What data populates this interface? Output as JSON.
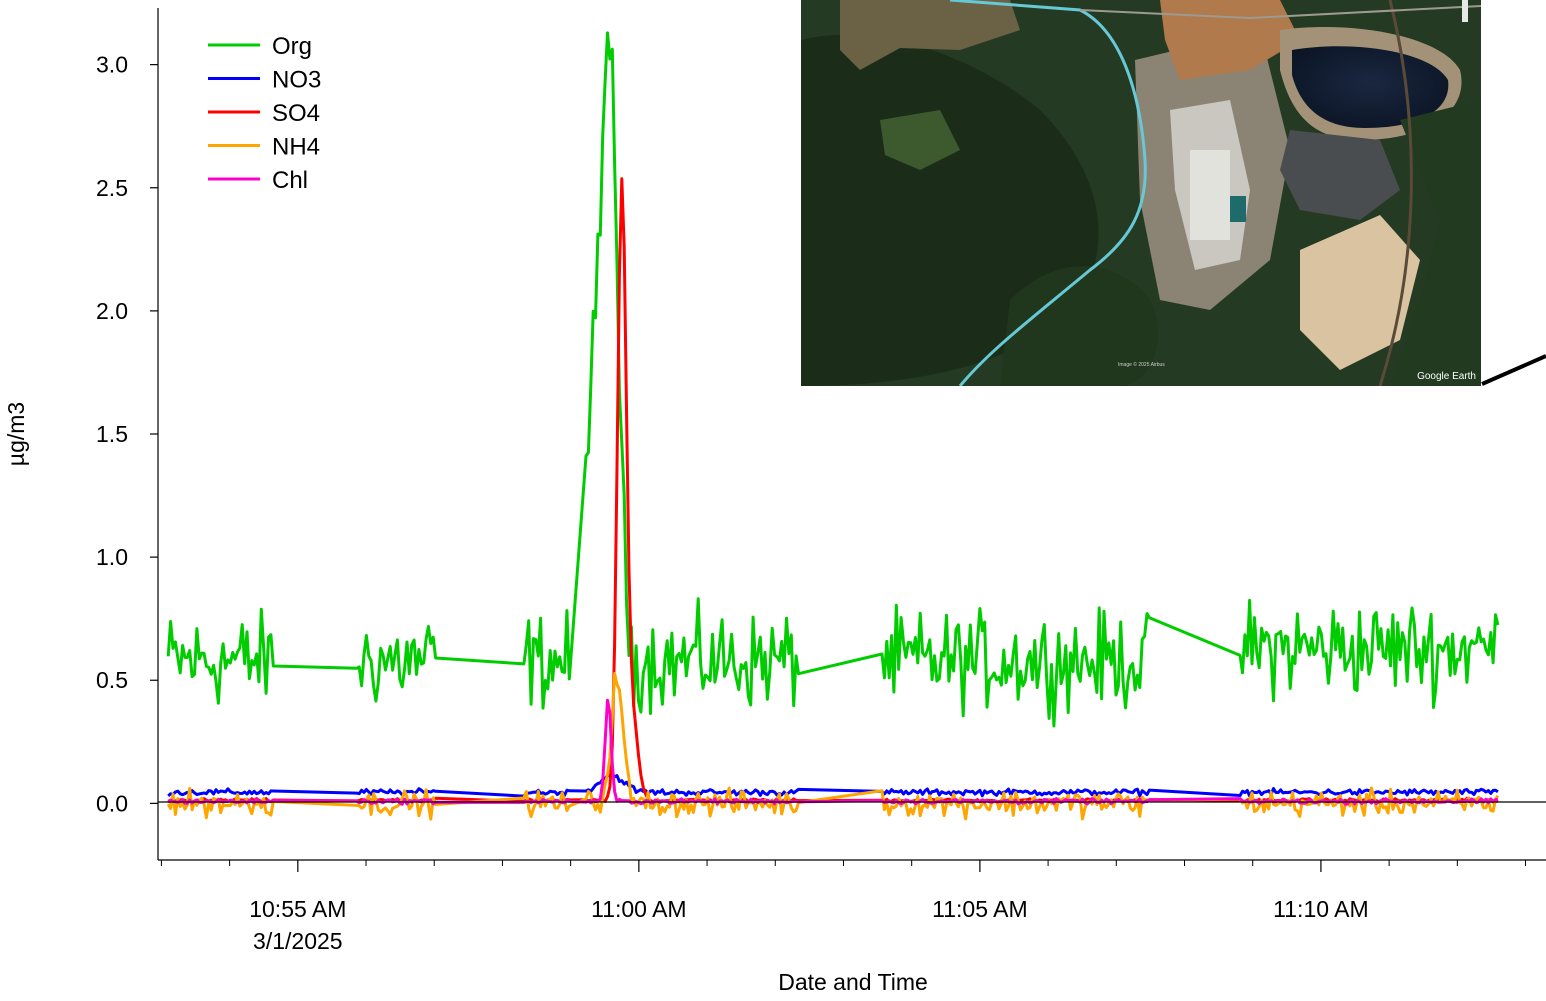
{
  "chart_data": {
    "type": "line",
    "title": "",
    "xlabel": "Date and Time",
    "ylabel": "µg/m3",
    "ylim": [
      -0.23,
      3.23
    ],
    "xlim_minutes": [
      -2.05,
      18.3
    ],
    "x_ref_time": "10:55 AM 3/1/2025",
    "yticks": [
      {
        "value": 0.0,
        "label": "0.0"
      },
      {
        "value": 0.5,
        "label": "0.5"
      },
      {
        "value": 1.0,
        "label": "1.0"
      },
      {
        "value": 1.5,
        "label": "1.5"
      },
      {
        "value": 2.0,
        "label": "2.0"
      },
      {
        "value": 2.5,
        "label": "2.5"
      },
      {
        "value": 3.0,
        "label": "3.0"
      }
    ],
    "xticks": [
      {
        "minute": 0,
        "label": "10:55 AM",
        "sublabel": "3/1/2025"
      },
      {
        "minute": 5,
        "label": "11:00 AM",
        "sublabel": ""
      },
      {
        "minute": 10,
        "label": "11:05 AM",
        "sublabel": ""
      },
      {
        "minute": 15,
        "label": "11:10 AM",
        "sublabel": ""
      }
    ],
    "legend_position": "top-left",
    "zero_line": true,
    "gaps_minutes": [
      [
        -0.33,
        0.85
      ],
      [
        2.05,
        3.3
      ],
      [
        4.0,
        4.2
      ],
      [
        7.35,
        8.55
      ],
      [
        12.5,
        13.8
      ]
    ],
    "series": [
      {
        "name": "Org",
        "color": "#00cc00",
        "kind": "org",
        "values_summary": {
          "baseline": 0.6,
          "spike_peak": 3.22,
          "spike_minute": 4.6
        }
      },
      {
        "name": "NO3",
        "color": "#0000ff",
        "kind": "no3",
        "values_summary": {
          "baseline": 0.05,
          "spike_peak": 0.12,
          "spike_minute": 4.6
        }
      },
      {
        "name": "SO4",
        "color": "#ff0000",
        "kind": "so4",
        "values_summary": {
          "baseline": 0.01,
          "spike_peak": 2.48,
          "spike_minute": 4.75
        }
      },
      {
        "name": "NH4",
        "color": "#ffa500",
        "kind": "nh4",
        "values_summary": {
          "baseline": 0.0,
          "spike_peak": 0.56,
          "spike_minute": 4.7
        }
      },
      {
        "name": "Chl",
        "color": "#ff00cc",
        "kind": "chl",
        "values_summary": {
          "baseline": 0.01,
          "spike_peak": 0.43,
          "spike_minute": 4.55
        }
      }
    ]
  },
  "inset": {
    "credit": "Google Earth",
    "small_credit": "Image © 2025 Airbus"
  }
}
